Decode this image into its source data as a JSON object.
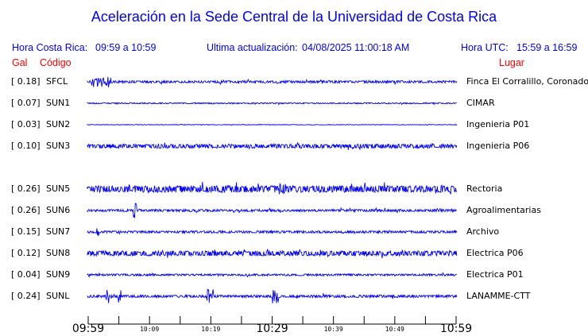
{
  "title": "Aceleración en la Sede Central de la Universidad de Costa Rica",
  "header": {
    "local_label": "Hora Costa Rica:",
    "local_range": "09:59 a 10:59",
    "update_label": "Ultima actualización:",
    "update_value": "04/08/2025 11:00:18 AM",
    "utc_label": "Hora UTC:",
    "utc_range": "15:59 a 16:59"
  },
  "columns": {
    "gal": "Gal",
    "code": "Código",
    "place": "Lugar"
  },
  "trace_color": "#0000ff",
  "stations": [
    {
      "gal": "[   0.18]",
      "code": "SFCL",
      "place": "Finca El Corralillo, Coronado"
    },
    {
      "gal": "[   0.07]",
      "code": "SUN1",
      "place": "CIMAR"
    },
    {
      "gal": "[   0.03]",
      "code": "SUN2",
      "place": "Ingenieria P01"
    },
    {
      "gal": "[   0.10]",
      "code": "SUN3",
      "place": "Ingenieria P06"
    },
    {
      "gal": "[   0.26]",
      "code": "SUN5",
      "place": "Rectoria"
    },
    {
      "gal": "[   0.26]",
      "code": "SUN6",
      "place": "Agroalimentarias"
    },
    {
      "gal": "[   0.15]",
      "code": "SUN7",
      "place": "Archivo"
    },
    {
      "gal": "[   0.12]",
      "code": "SUN8",
      "place": "Electrica P06"
    },
    {
      "gal": "[   0.04]",
      "code": "SUN9",
      "place": "Electrica P01"
    },
    {
      "gal": "[   0.24]",
      "code": "SUNL",
      "place": "LANAMME-CTT"
    }
  ],
  "time_axis": {
    "labels": [
      "09:59",
      "10:09",
      "10:19",
      "10:29",
      "10:39",
      "10:49",
      "10:59"
    ]
  }
}
